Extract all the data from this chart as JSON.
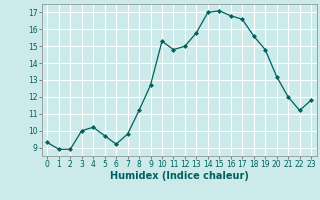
{
  "x": [
    0,
    1,
    2,
    3,
    4,
    5,
    6,
    7,
    8,
    9,
    10,
    11,
    12,
    13,
    14,
    15,
    16,
    17,
    18,
    19,
    20,
    21,
    22,
    23
  ],
  "y": [
    9.3,
    8.9,
    8.9,
    10.0,
    10.2,
    9.7,
    9.2,
    9.8,
    11.2,
    12.7,
    15.3,
    14.8,
    15.0,
    15.8,
    17.0,
    17.1,
    16.8,
    16.6,
    15.6,
    14.8,
    13.2,
    12.0,
    11.2,
    11.8
  ],
  "bg_color": "#cceaea",
  "line_color": "#006060",
  "marker_color": "#006060",
  "grid_color": "#ffffff",
  "xlabel": "Humidex (Indice chaleur)",
  "xlim": [
    -0.5,
    23.5
  ],
  "ylim": [
    8.5,
    17.5
  ],
  "yticks": [
    9,
    10,
    11,
    12,
    13,
    14,
    15,
    16,
    17
  ],
  "xticks": [
    0,
    1,
    2,
    3,
    4,
    5,
    6,
    7,
    8,
    9,
    10,
    11,
    12,
    13,
    14,
    15,
    16,
    17,
    18,
    19,
    20,
    21,
    22,
    23
  ],
  "tick_fontsize": 5.5,
  "label_fontsize": 7.0
}
